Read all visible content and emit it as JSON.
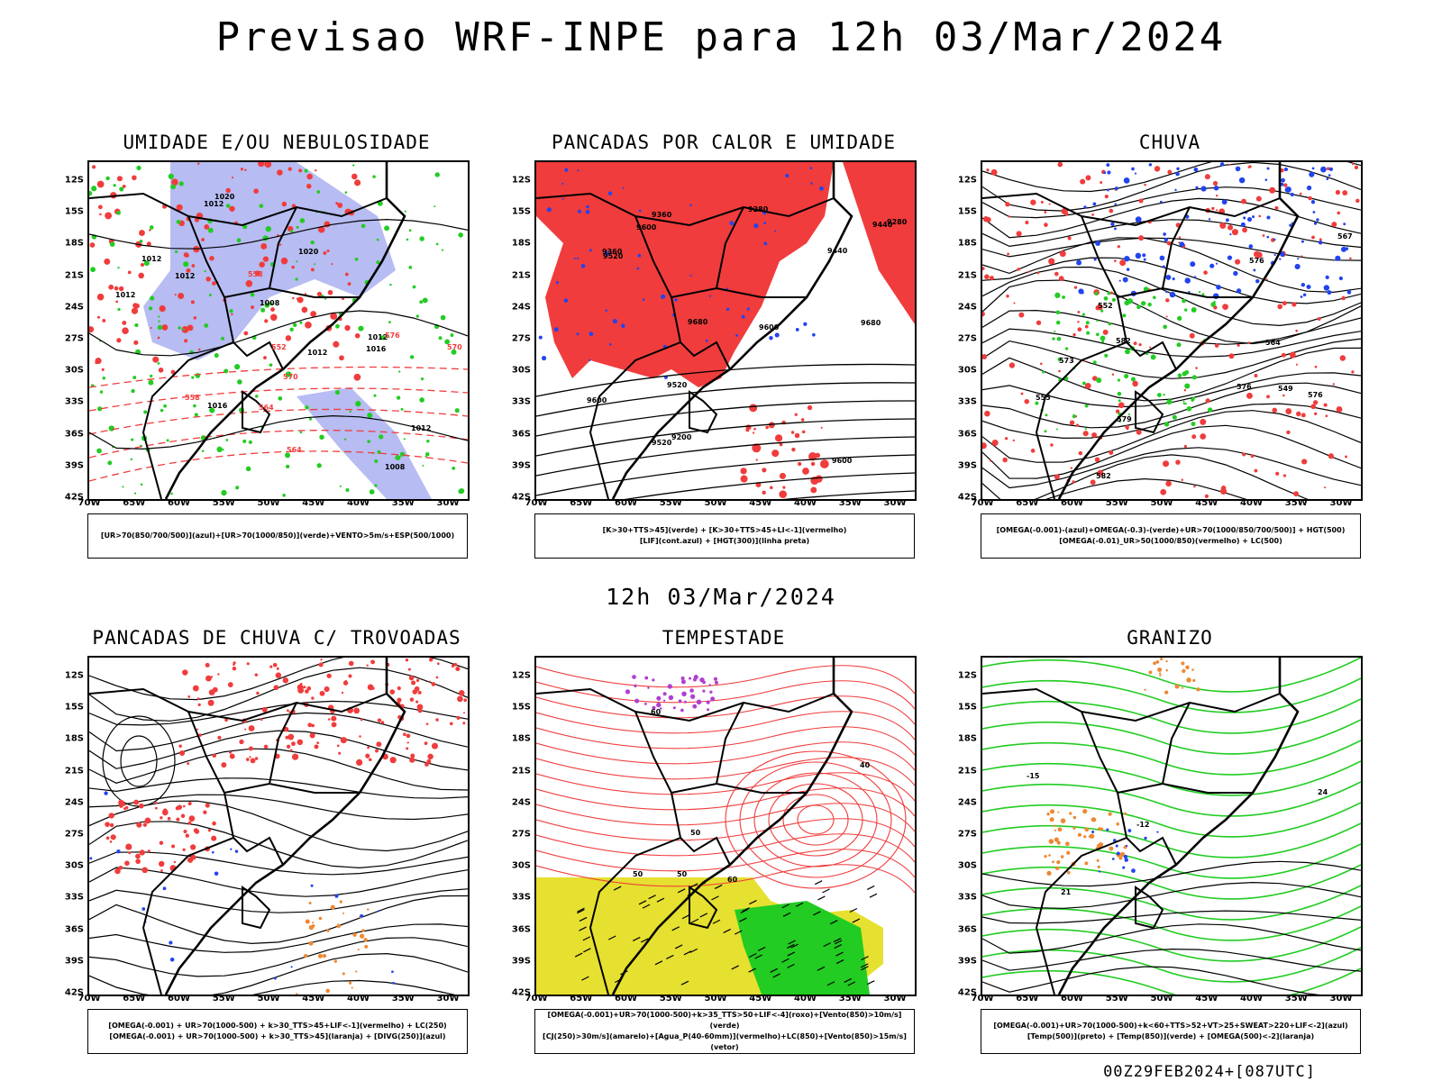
{
  "title": "Previsao WRF-INPE  para 12h 03/Mar/2024",
  "subtitle": "12h 03/Mar/2024",
  "footer": "00Z29FEB2024+[087UTC]",
  "lat_labels": [
    "12S",
    "15S",
    "18S",
    "21S",
    "24S",
    "27S",
    "30S",
    "33S",
    "36S",
    "39S",
    "42S"
  ],
  "lon_labels": [
    "70W",
    "65W",
    "60W",
    "55W",
    "50W",
    "45W",
    "40W",
    "35W",
    "30W"
  ],
  "colors": {
    "red": "#f03c3c",
    "green": "#22cc22",
    "blue": "#2244ee",
    "lavender": "#aab0f0",
    "orange": "#ee8833",
    "yellow": "#e6e030",
    "purple": "#b040d0"
  },
  "panels": [
    {
      "title": "UMIDADE E/OU NEBULOSIDADE",
      "legend": [
        "[UR>70(850/700/500)](azul)+[UR>70(1000/850)](verde)+VENTO>5m/s+ESP(500/1000)"
      ],
      "labels": [
        "1012",
        "1012",
        "1008",
        "1012",
        "1016",
        "1020",
        "1012",
        "1012",
        "1012",
        "1016",
        "1020",
        "1012",
        "1008",
        "576",
        "570",
        "564",
        "558",
        "552",
        "558",
        "564",
        "570"
      ]
    },
    {
      "title": "PANCADAS POR CALOR E UMIDADE",
      "legend": [
        "[K>30+TTS>45](verde) + [K>30+TTS>45+LI<-1](vermelho)",
        "[LIF](cont.azul) + [HGT(300)](linha preta)"
      ],
      "labels": [
        "9600",
        "9680",
        "9680",
        "9600",
        "9600",
        "9520",
        "9600",
        "9520",
        "9520",
        "9440",
        "9440",
        "9360",
        "9360",
        "9280",
        "9200",
        "9280"
      ]
    },
    {
      "title": "CHUVA",
      "legend": [
        "[OMEGA(-0.001)-(azul)+OMEGA(-0.3)-(verde)+UR>70(1000/850/700/500)] + HGT(500)",
        "[OMEGA(-0.01)_UR>50(1000/850)(vermelho) + LC(500)"
      ],
      "labels": [
        "582",
        "576",
        "582",
        "579",
        "576",
        "576",
        "573",
        "567",
        "564",
        "555",
        "552",
        "549"
      ]
    },
    {
      "title": "PANCADAS DE CHUVA C/ TROVOADAS",
      "legend": [
        "[OMEGA(-0.001) + UR>70(1000-500) + k>30_TTS>45+LIF<-1](vermelho) + LC(250)",
        "[OMEGA(-0.001) + UR>70(1000-500) + k>30_TTS>45](laranja) + [DIVG(250)](azul)"
      ],
      "labels": []
    },
    {
      "title": "TEMPESTADE",
      "legend": [
        "[OMEGA(-0.001)+UR>70(1000-500)+k>35_TTS>50+LIF<-4](roxo)+[Vento(850)>10m/s](verde)",
        "[CJ(250)>30m/s](amarelo)+[Agua_P(40-60mm)](vermelho)+LC(850)+[Vento(850)>15m/s](vetor)"
      ],
      "labels": [
        "50",
        "60",
        "50",
        "50",
        "60",
        "40"
      ]
    },
    {
      "title": "GRANIZO",
      "legend": [
        "[OMEGA(-0.001)+UR>70(1000-500)+k<60+TTS>52+VT>25+SWEAT>220+LIF<-2](azul)",
        "[Temp(500)](preto) + [Temp(850)](verde) + [OMEGA(500)<-2](laranja)"
      ],
      "labels": [
        "-12",
        "-15",
        "21",
        "24"
      ]
    }
  ]
}
